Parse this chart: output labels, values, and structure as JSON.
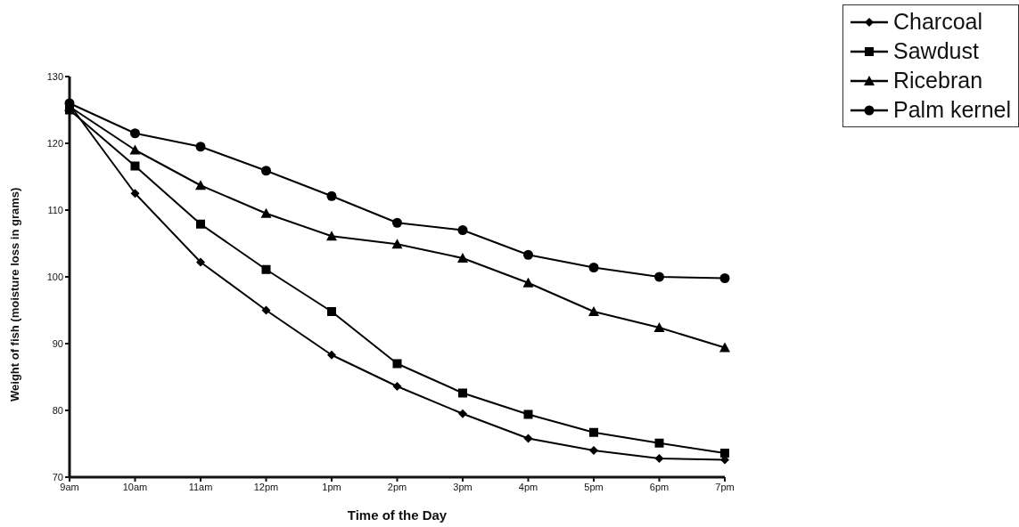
{
  "chart_data": {
    "type": "line",
    "xlabel": "Time of the Day",
    "ylabel": "Weight of fish (moisture loss in grams)",
    "categories": [
      "9am",
      "10am",
      "11am",
      "12pm",
      "1pm",
      "2pm",
      "3pm",
      "4pm",
      "5pm",
      "6pm",
      "7pm"
    ],
    "series": [
      {
        "name": "Charcoal",
        "color": "#000000",
        "marker": "diamond",
        "values": [
          125.8,
          112.5,
          102.2,
          95.0,
          88.3,
          83.6,
          79.5,
          75.8,
          74.0,
          72.8,
          72.6
        ]
      },
      {
        "name": "Sawdust",
        "color": "#000000",
        "marker": "square",
        "values": [
          125.0,
          116.6,
          107.9,
          101.1,
          94.8,
          87.0,
          82.6,
          79.4,
          76.7,
          75.1,
          73.6
        ]
      },
      {
        "name": "Ricebran",
        "color": "#000000",
        "marker": "triangle",
        "values": [
          125.5,
          119.0,
          113.7,
          109.5,
          106.1,
          104.9,
          102.8,
          99.1,
          94.8,
          92.4,
          89.4
        ]
      },
      {
        "name": "Palm kernel",
        "color": "#000000",
        "marker": "circle",
        "values": [
          126.0,
          121.5,
          119.5,
          115.9,
          112.1,
          108.1,
          107.0,
          103.3,
          101.4,
          100.0,
          99.8
        ]
      }
    ],
    "ylim": [
      70,
      130
    ],
    "yticks": [
      70,
      80,
      90,
      100,
      110,
      120,
      130
    ],
    "grid": false,
    "legend": "top right",
    "line_style": "solid"
  }
}
